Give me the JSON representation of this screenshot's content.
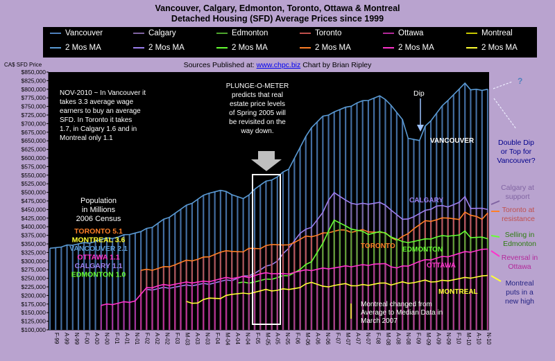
{
  "title_line1": "Vancouver, Calgary, Edmonton, Toronto, Ottawa & Montreal",
  "title_line2": "Detached Housing (SFD) Average Prices since 1999",
  "source_prefix": "Sources Published at:",
  "source_link": "www.chpc.biz",
  "source_suffix": "Chart by Brian Ripley",
  "chart_data": {
    "type": "line",
    "ylabel": "CA$ SFD Price",
    "ylim": [
      100000,
      850000
    ],
    "ytick_step": 25000,
    "grid": false,
    "xticks": [
      "F-99",
      "A-99",
      "N-99",
      "F-00",
      "A-00",
      "N-00",
      "F-01",
      "A-01",
      "N-01",
      "F-02",
      "A-02",
      "N-02",
      "F-03",
      "M-03",
      "A-03",
      "N-03",
      "F-04",
      "M-04",
      "A-04",
      "N-04",
      "F-05",
      "M-05",
      "A-05",
      "N-05",
      "F-06",
      "M-06",
      "A-06",
      "N-06",
      "F-07",
      "M-07",
      "A-07",
      "N-07",
      "F-08",
      "M-08",
      "A-08",
      "N-08",
      "F-09",
      "M-09",
      "A-09",
      "N-09",
      "F-10",
      "M-10",
      "A-10",
      "N-10"
    ],
    "legend": [
      {
        "label": "Vancouver",
        "color": "#4f81bd"
      },
      {
        "label": "Calgary",
        "color": "#8064a2"
      },
      {
        "label": "Edmonton",
        "color": "#4ea72e"
      },
      {
        "label": "Toronto",
        "color": "#c0504d"
      },
      {
        "label": "Ottawa",
        "color": "#b3299a"
      },
      {
        "label": "Montreal",
        "color": "#c8c800"
      },
      {
        "label": "2 Mos MA",
        "color": "#5b9bd5"
      },
      {
        "label": "2 Mos MA",
        "color": "#9d7ff0"
      },
      {
        "label": "2 Mos MA",
        "color": "#66ff33"
      },
      {
        "label": "2 Mos MA",
        "color": "#ff7f27"
      },
      {
        "label": "2 Mos MA",
        "color": "#ff33cc"
      },
      {
        "label": "2 Mos MA",
        "color": "#ffff33"
      }
    ],
    "series": [
      {
        "key": "vancouver",
        "color": "#4f81bd",
        "ma_color": "#5b9bd5",
        "kind": "bars",
        "points": [
          [
            0,
            340000
          ],
          [
            2,
            340000
          ],
          [
            4,
            348000
          ],
          [
            6,
            352000
          ],
          [
            8,
            358000
          ],
          [
            10,
            365000
          ],
          [
            12,
            370000
          ],
          [
            14,
            380000
          ],
          [
            16,
            385000
          ],
          [
            18,
            400000
          ],
          [
            20,
            420000
          ],
          [
            22,
            440000
          ],
          [
            24,
            460000
          ],
          [
            26,
            480000
          ],
          [
            28,
            500000
          ],
          [
            30,
            505000
          ],
          [
            32,
            495000
          ],
          [
            34,
            480000
          ],
          [
            36,
            510000
          ],
          [
            38,
            530000
          ],
          [
            40,
            545000
          ],
          [
            42,
            570000
          ],
          [
            44,
            630000
          ],
          [
            46,
            690000
          ],
          [
            48,
            720000
          ],
          [
            50,
            735000
          ],
          [
            52,
            745000
          ],
          [
            54,
            760000
          ],
          [
            56,
            770000
          ],
          [
            58,
            780000
          ],
          [
            60,
            755000
          ],
          [
            62,
            710000
          ],
          [
            63,
            660000
          ],
          [
            65,
            650000
          ],
          [
            66,
            690000
          ],
          [
            68,
            730000
          ],
          [
            70,
            770000
          ],
          [
            72,
            800000
          ],
          [
            73,
            815000
          ],
          [
            74,
            800000
          ],
          [
            75,
            800000
          ],
          [
            76,
            795000
          ],
          [
            77,
            800000
          ]
        ]
      },
      {
        "key": "calgary",
        "color": "#8064a2",
        "ma_color": "#9d7ff0",
        "kind": "bars",
        "points": [
          [
            17,
            215000
          ],
          [
            20,
            222000
          ],
          [
            24,
            228000
          ],
          [
            28,
            235000
          ],
          [
            32,
            245000
          ],
          [
            36,
            265000
          ],
          [
            40,
            300000
          ],
          [
            42,
            340000
          ],
          [
            44,
            380000
          ],
          [
            46,
            400000
          ],
          [
            48,
            440000
          ],
          [
            49,
            480000
          ],
          [
            50,
            500000
          ],
          [
            52,
            475000
          ],
          [
            54,
            465000
          ],
          [
            56,
            468000
          ],
          [
            58,
            470000
          ],
          [
            60,
            450000
          ],
          [
            62,
            420000
          ],
          [
            64,
            430000
          ],
          [
            66,
            445000
          ],
          [
            68,
            460000
          ],
          [
            70,
            460000
          ],
          [
            72,
            470000
          ],
          [
            73,
            485000
          ],
          [
            74,
            455000
          ],
          [
            76,
            452000
          ],
          [
            77,
            450000
          ]
        ]
      },
      {
        "key": "toronto",
        "color": "#c0504d",
        "ma_color": "#ff7f27",
        "kind": "bars",
        "points": [
          [
            16,
            272000
          ],
          [
            18,
            275000
          ],
          [
            20,
            282000
          ],
          [
            22,
            290000
          ],
          [
            24,
            300000
          ],
          [
            26,
            305000
          ],
          [
            28,
            315000
          ],
          [
            30,
            325000
          ],
          [
            32,
            330000
          ],
          [
            34,
            325000
          ],
          [
            35,
            340000
          ],
          [
            37,
            335000
          ],
          [
            39,
            350000
          ],
          [
            41,
            345000
          ],
          [
            43,
            355000
          ],
          [
            45,
            370000
          ],
          [
            47,
            375000
          ],
          [
            49,
            385000
          ],
          [
            51,
            390000
          ],
          [
            53,
            385000
          ],
          [
            55,
            390000
          ],
          [
            57,
            385000
          ],
          [
            59,
            380000
          ],
          [
            61,
            360000
          ],
          [
            62,
            370000
          ],
          [
            64,
            395000
          ],
          [
            66,
            415000
          ],
          [
            68,
            420000
          ],
          [
            70,
            428000
          ],
          [
            72,
            420000
          ],
          [
            73,
            440000
          ],
          [
            75,
            430000
          ],
          [
            76,
            420000
          ],
          [
            77,
            440000
          ]
        ]
      },
      {
        "key": "edmonton",
        "color": "#4ea72e",
        "ma_color": "#66ff33",
        "kind": "bars",
        "points": [
          [
            33,
            236000
          ],
          [
            36,
            240000
          ],
          [
            38,
            245000
          ],
          [
            40,
            252000
          ],
          [
            42,
            260000
          ],
          [
            44,
            275000
          ],
          [
            46,
            300000
          ],
          [
            48,
            350000
          ],
          [
            49,
            390000
          ],
          [
            50,
            420000
          ],
          [
            52,
            400000
          ],
          [
            54,
            390000
          ],
          [
            56,
            380000
          ],
          [
            58,
            385000
          ],
          [
            60,
            372000
          ],
          [
            62,
            355000
          ],
          [
            64,
            358000
          ],
          [
            66,
            362000
          ],
          [
            68,
            370000
          ],
          [
            70,
            375000
          ],
          [
            72,
            375000
          ],
          [
            73,
            385000
          ],
          [
            74,
            370000
          ],
          [
            76,
            368000
          ],
          [
            77,
            365000
          ]
        ]
      },
      {
        "key": "ottawa",
        "color": "#b3299a",
        "ma_color": "#ff33cc",
        "kind": "bars",
        "points": [
          [
            9,
            170000
          ],
          [
            11,
            175000
          ],
          [
            13,
            180000
          ],
          [
            15,
            185000
          ],
          [
            17,
            220000
          ],
          [
            19,
            228000
          ],
          [
            21,
            232000
          ],
          [
            23,
            235000
          ],
          [
            25,
            238000
          ],
          [
            27,
            240000
          ],
          [
            29,
            245000
          ],
          [
            31,
            250000
          ],
          [
            33,
            252000
          ],
          [
            35,
            255000
          ],
          [
            37,
            262000
          ],
          [
            39,
            265000
          ],
          [
            41,
            262000
          ],
          [
            43,
            268000
          ],
          [
            45,
            272000
          ],
          [
            47,
            276000
          ],
          [
            49,
            280000
          ],
          [
            51,
            282000
          ],
          [
            53,
            285000
          ],
          [
            55,
            288000
          ],
          [
            57,
            292000
          ],
          [
            59,
            290000
          ],
          [
            61,
            280000
          ],
          [
            63,
            288000
          ],
          [
            65,
            298000
          ],
          [
            67,
            305000
          ],
          [
            69,
            312000
          ],
          [
            71,
            318000
          ],
          [
            73,
            325000
          ],
          [
            75,
            330000
          ],
          [
            77,
            335000
          ]
        ]
      },
      {
        "key": "montreal",
        "color": "#c8c800",
        "ma_color": "#ffff33",
        "kind": "line",
        "points": [
          [
            24,
            180000
          ],
          [
            26,
            178000
          ],
          [
            28,
            195000
          ],
          [
            30,
            190000
          ],
          [
            32,
            205000
          ],
          [
            34,
            205000
          ],
          [
            36,
            210000
          ],
          [
            38,
            215000
          ],
          [
            40,
            215000
          ],
          [
            42,
            220000
          ],
          [
            44,
            222000
          ],
          [
            46,
            240000
          ],
          [
            48,
            225000
          ],
          [
            50,
            230000
          ],
          [
            52,
            232000
          ],
          [
            54,
            228000
          ],
          [
            56,
            232000
          ],
          [
            58,
            235000
          ],
          [
            60,
            232000
          ],
          [
            62,
            238000
          ],
          [
            64,
            238000
          ],
          [
            66,
            242000
          ],
          [
            68,
            240000
          ],
          [
            70,
            245000
          ],
          [
            72,
            248000
          ],
          [
            74,
            252000
          ],
          [
            76,
            255000
          ],
          [
            77,
            258000
          ]
        ]
      }
    ],
    "annotations": {
      "nov_note": "NOV-2010 ~ In Vancouver it takes 3.3 average wage earners to buy an average SFD. In Toronto it takes 1.7, in Calgary 1.6 and in Montreal only 1.1",
      "plunge_note": "PLUNGE-O-METER predicts that real estate price levels of Spring 2005 will be revisited on the way down.",
      "dip": "Dip",
      "question": "?",
      "double_dip": "Double Dip or Top for Vancouver?",
      "calgary_support": "Calgary at support",
      "toronto_resistance": "Toronto at resistance",
      "selling_edmonton": "Selling in Edmonton",
      "reversal_ottawa": "Reversal in Ottawa",
      "montreal_high": "Montreal puts in a new high",
      "montreal_median": "Montreal changed from Average to Median Data in March 2007",
      "lbl_vancouver": "VANCOUVER",
      "lbl_calgary": "CALGARY",
      "lbl_toronto": "TORONTO",
      "lbl_edmonton": "EDMONTON",
      "lbl_ottawa": "OTTAWA",
      "lbl_montreal": "MONTREAL"
    },
    "population": {
      "title": "Population in Millions 2006 Census",
      "rows": [
        {
          "text": "TORONTO 5.1",
          "color": "#ff7f27"
        },
        {
          "text": "MONTREAL 3.6",
          "color": "#ffff33"
        },
        {
          "text": "VANCOUVER 2.1",
          "color": "#5b9bd5"
        },
        {
          "text": "OTTAWA 1.1",
          "color": "#ff33cc"
        },
        {
          "text": "CALGARY 1.1",
          "color": "#9d7ff0"
        },
        {
          "text": "EDMONTON 1.0",
          "color": "#66ff33"
        }
      ]
    }
  }
}
